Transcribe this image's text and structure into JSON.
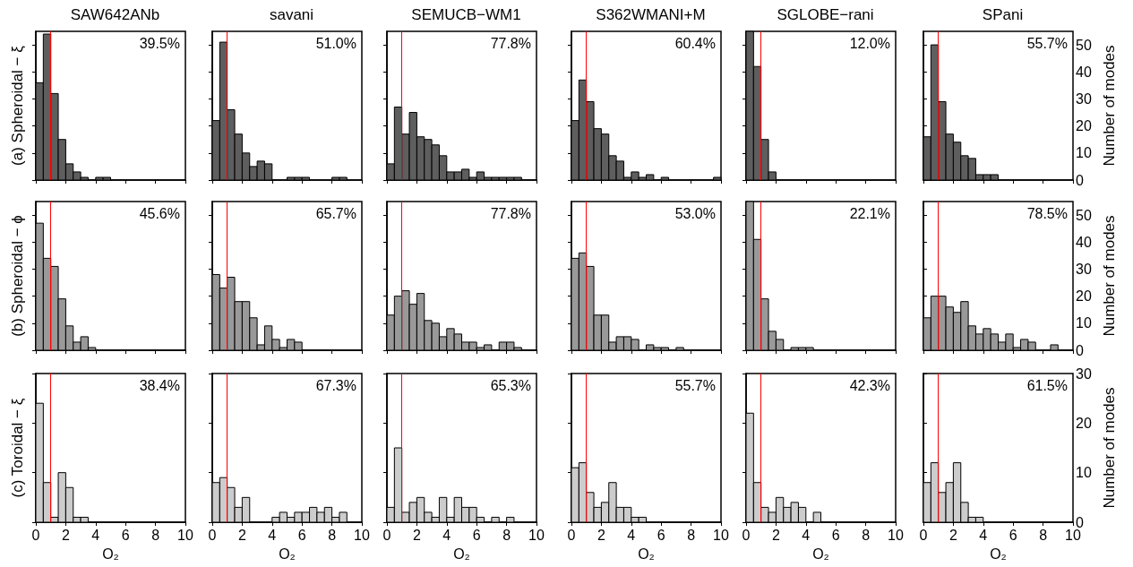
{
  "chart_data": [
    {
      "type": "histogram",
      "title": "SAW642ANb",
      "ylabel": "(a) Spheroidal − ξ",
      "annotations": [
        "39.5%"
      ],
      "color": "#5e5e5e",
      "bins": [
        0,
        0.5,
        1,
        1.5,
        2,
        2.5,
        3,
        3.5,
        4,
        4.5,
        5,
        5.5,
        6,
        6.5,
        7,
        7.5,
        8,
        8.5,
        9,
        9.5,
        10
      ],
      "values": [
        36,
        54,
        32,
        15,
        6,
        3,
        1,
        0,
        1,
        1,
        0,
        0,
        0,
        0,
        0,
        0,
        0,
        0,
        0,
        0
      ],
      "xlim": [
        0,
        10
      ],
      "xticks": [
        0,
        2,
        4,
        6,
        8,
        10
      ],
      "ylim": [
        0,
        55
      ],
      "yticks": [
        0,
        10,
        20,
        30,
        40,
        50
      ],
      "ref_lines": [
        {
          "axis": "x",
          "value": 1,
          "color": "#ff0000"
        }
      ],
      "tick_labels": false
    },
    {
      "type": "histogram",
      "title": "savani",
      "annotations": [
        "51.0%"
      ],
      "color": "#5e5e5e",
      "bins": [
        0,
        0.5,
        1,
        1.5,
        2,
        2.5,
        3,
        3.5,
        4,
        4.5,
        5,
        5.5,
        6,
        6.5,
        7,
        7.5,
        8,
        8.5,
        9,
        9.5,
        10
      ],
      "values": [
        22,
        51,
        26,
        17,
        10,
        5,
        7,
        6,
        0,
        0,
        1,
        1,
        1,
        0,
        0,
        0,
        1,
        1,
        0,
        0
      ],
      "xlim": [
        0,
        10
      ],
      "xticks": [
        0,
        2,
        4,
        6,
        8,
        10
      ],
      "ylim": [
        0,
        55
      ],
      "yticks": [
        0,
        10,
        20,
        30,
        40,
        50
      ],
      "ref_lines": [
        {
          "axis": "x",
          "value": 1,
          "color": "#ff0000"
        }
      ],
      "tick_labels": false
    },
    {
      "type": "histogram",
      "title": "SEMUCB−WM1",
      "annotations": [
        "77.8%"
      ],
      "color": "#5e5e5e",
      "bins": [
        0,
        0.5,
        1,
        1.5,
        2,
        2.5,
        3,
        3.5,
        4,
        4.5,
        5,
        5.5,
        6,
        6.5,
        7,
        7.5,
        8,
        8.5,
        9,
        9.5,
        10
      ],
      "values": [
        6,
        27,
        17,
        25,
        16,
        15,
        13,
        9,
        3,
        3,
        4,
        1,
        3,
        1,
        1,
        1,
        1,
        1,
        0,
        0
      ],
      "xlim": [
        0,
        10
      ],
      "xticks": [
        0,
        2,
        4,
        6,
        8,
        10
      ],
      "ylim": [
        0,
        55
      ],
      "yticks": [
        0,
        10,
        20,
        30,
        40,
        50
      ],
      "ref_lines": [
        {
          "axis": "x",
          "value": 1,
          "color": "#ff0000"
        }
      ],
      "tick_labels": false
    },
    {
      "type": "histogram",
      "title": "S362WMANI+M",
      "annotations": [
        "60.4%"
      ],
      "color": "#5e5e5e",
      "bins": [
        0,
        0.5,
        1,
        1.5,
        2,
        2.5,
        3,
        3.5,
        4,
        4.5,
        5,
        5.5,
        6,
        6.5,
        7,
        7.5,
        8,
        8.5,
        9,
        9.5,
        10
      ],
      "values": [
        22,
        37,
        29,
        19,
        17,
        9,
        7,
        1,
        3,
        1,
        2,
        0,
        1,
        0,
        0,
        0,
        0,
        0,
        0,
        1
      ],
      "xlim": [
        0,
        10
      ],
      "xticks": [
        0,
        2,
        4,
        6,
        8,
        10
      ],
      "ylim": [
        0,
        55
      ],
      "yticks": [
        0,
        10,
        20,
        30,
        40,
        50
      ],
      "ref_lines": [
        {
          "axis": "x",
          "value": 1,
          "color": "#ff0000"
        }
      ],
      "tick_labels": false
    },
    {
      "type": "histogram",
      "title": "SGLOBE−rani",
      "annotations": [
        "12.0%"
      ],
      "color": "#5e5e5e",
      "bins": [
        0,
        0.5,
        1,
        1.5,
        2,
        2.5,
        3,
        3.5,
        4,
        4.5,
        5,
        5.5,
        6,
        6.5,
        7,
        7.5,
        8,
        8.5,
        9,
        9.5,
        10
      ],
      "values": [
        55,
        42,
        15,
        3,
        0,
        0,
        0,
        0,
        0,
        0,
        0,
        0,
        0,
        0,
        0,
        0,
        0,
        0,
        0,
        0
      ],
      "xlim": [
        0,
        10
      ],
      "xticks": [
        0,
        2,
        4,
        6,
        8,
        10
      ],
      "ylim": [
        0,
        55
      ],
      "yticks": [
        0,
        10,
        20,
        30,
        40,
        50
      ],
      "ref_lines": [
        {
          "axis": "x",
          "value": 1,
          "color": "#ff0000"
        }
      ],
      "tick_labels": false
    },
    {
      "type": "histogram",
      "title": "SPani",
      "ylabel": "Number of modes",
      "annotations": [
        "55.7%"
      ],
      "color": "#5e5e5e",
      "bins": [
        0,
        0.5,
        1,
        1.5,
        2,
        2.5,
        3,
        3.5,
        4,
        4.5,
        5,
        5.5,
        6,
        6.5,
        7,
        7.5,
        8,
        8.5,
        9,
        9.5,
        10
      ],
      "values": [
        16,
        50,
        29,
        17,
        14,
        9,
        8,
        2,
        2,
        2,
        0,
        0,
        0,
        0,
        0,
        0,
        0,
        0,
        0,
        0
      ],
      "xlim": [
        0,
        10
      ],
      "xticks": [
        0,
        2,
        4,
        6,
        8,
        10
      ],
      "ylim": [
        0,
        55
      ],
      "yticks": [
        0,
        10,
        20,
        30,
        40,
        50
      ],
      "ref_lines": [
        {
          "axis": "x",
          "value": 1,
          "color": "#ff0000"
        }
      ],
      "tick_labels": "y"
    },
    {
      "type": "histogram",
      "ylabel": "(b) Spheroidal − ϕ",
      "annotations": [
        "45.6%"
      ],
      "color": "#999999",
      "bins": [
        0,
        0.5,
        1,
        1.5,
        2,
        2.5,
        3,
        3.5,
        4,
        4.5,
        5,
        5.5,
        6,
        6.5,
        7,
        7.5,
        8,
        8.5,
        9,
        9.5,
        10
      ],
      "values": [
        47,
        34,
        31,
        19,
        9,
        3,
        5,
        1,
        0,
        0,
        0,
        0,
        0,
        0,
        0,
        0,
        0,
        0,
        0,
        0
      ],
      "xlim": [
        0,
        10
      ],
      "xticks": [
        0,
        2,
        4,
        6,
        8,
        10
      ],
      "ylim": [
        0,
        55
      ],
      "yticks": [
        0,
        10,
        20,
        30,
        40,
        50
      ],
      "ref_lines": [
        {
          "axis": "x",
          "value": 1,
          "color": "#ff0000"
        }
      ],
      "tick_labels": false
    },
    {
      "type": "histogram",
      "annotations": [
        "65.7%"
      ],
      "color": "#999999",
      "bins": [
        0,
        0.5,
        1,
        1.5,
        2,
        2.5,
        3,
        3.5,
        4,
        4.5,
        5,
        5.5,
        6,
        6.5,
        7,
        7.5,
        8,
        8.5,
        9,
        9.5,
        10
      ],
      "values": [
        28,
        23,
        27,
        18,
        18,
        12,
        2,
        9,
        4,
        1,
        4,
        3,
        0,
        0,
        0,
        0,
        0,
        0,
        0,
        0
      ],
      "xlim": [
        0,
        10
      ],
      "xticks": [
        0,
        2,
        4,
        6,
        8,
        10
      ],
      "ylim": [
        0,
        55
      ],
      "yticks": [
        0,
        10,
        20,
        30,
        40,
        50
      ],
      "ref_lines": [
        {
          "axis": "x",
          "value": 1,
          "color": "#ff0000"
        }
      ],
      "tick_labels": false
    },
    {
      "type": "histogram",
      "annotations": [
        "77.8%"
      ],
      "color": "#999999",
      "bins": [
        0,
        0.5,
        1,
        1.5,
        2,
        2.5,
        3,
        3.5,
        4,
        4.5,
        5,
        5.5,
        6,
        6.5,
        7,
        7.5,
        8,
        8.5,
        9,
        9.5,
        10
      ],
      "values": [
        13,
        20,
        22,
        17,
        21,
        11,
        10,
        5,
        8,
        6,
        3,
        3,
        1,
        2,
        0,
        3,
        3,
        1,
        0,
        0
      ],
      "xlim": [
        0,
        10
      ],
      "xticks": [
        0,
        2,
        4,
        6,
        8,
        10
      ],
      "ylim": [
        0,
        55
      ],
      "yticks": [
        0,
        10,
        20,
        30,
        40,
        50
      ],
      "ref_lines": [
        {
          "axis": "x",
          "value": 1,
          "color": "#ff0000"
        }
      ],
      "tick_labels": false
    },
    {
      "type": "histogram",
      "annotations": [
        "53.0%"
      ],
      "color": "#999999",
      "bins": [
        0,
        0.5,
        1,
        1.5,
        2,
        2.5,
        3,
        3.5,
        4,
        4.5,
        5,
        5.5,
        6,
        6.5,
        7,
        7.5,
        8,
        8.5,
        9,
        9.5,
        10
      ],
      "values": [
        34,
        36,
        31,
        13,
        13,
        3,
        5,
        5,
        4,
        0,
        2,
        1,
        1,
        0,
        1,
        0,
        0,
        0,
        0,
        0
      ],
      "xlim": [
        0,
        10
      ],
      "xticks": [
        0,
        2,
        4,
        6,
        8,
        10
      ],
      "ylim": [
        0,
        55
      ],
      "yticks": [
        0,
        10,
        20,
        30,
        40,
        50
      ],
      "ref_lines": [
        {
          "axis": "x",
          "value": 1,
          "color": "#ff0000"
        }
      ],
      "tick_labels": false
    },
    {
      "type": "histogram",
      "annotations": [
        "22.1%"
      ],
      "color": "#999999",
      "bins": [
        0,
        0.5,
        1,
        1.5,
        2,
        2.5,
        3,
        3.5,
        4,
        4.5,
        5,
        5.5,
        6,
        6.5,
        7,
        7.5,
        8,
        8.5,
        9,
        9.5,
        10
      ],
      "values": [
        55,
        41,
        19,
        7,
        4,
        0,
        1,
        1,
        1,
        0,
        0,
        0,
        0,
        0,
        0,
        0,
        0,
        0,
        0,
        0
      ],
      "xlim": [
        0,
        10
      ],
      "xticks": [
        0,
        2,
        4,
        6,
        8,
        10
      ],
      "ylim": [
        0,
        55
      ],
      "yticks": [
        0,
        10,
        20,
        30,
        40,
        50
      ],
      "ref_lines": [
        {
          "axis": "x",
          "value": 1,
          "color": "#ff0000"
        }
      ],
      "tick_labels": false
    },
    {
      "type": "histogram",
      "ylabel": "Number of modes",
      "annotations": [
        "78.5%"
      ],
      "color": "#999999",
      "bins": [
        0,
        0.5,
        1,
        1.5,
        2,
        2.5,
        3,
        3.5,
        4,
        4.5,
        5,
        5.5,
        6,
        6.5,
        7,
        7.5,
        8,
        8.5,
        9,
        9.5,
        10
      ],
      "values": [
        12,
        20,
        20,
        16,
        14,
        18,
        9,
        6,
        8,
        6,
        3,
        6,
        1,
        4,
        3,
        0,
        0,
        2,
        0,
        0
      ],
      "xlim": [
        0,
        10
      ],
      "xticks": [
        0,
        2,
        4,
        6,
        8,
        10
      ],
      "ylim": [
        0,
        55
      ],
      "yticks": [
        0,
        10,
        20,
        30,
        40,
        50
      ],
      "ref_lines": [
        {
          "axis": "x",
          "value": 1,
          "color": "#ff0000"
        }
      ],
      "tick_labels": "y"
    },
    {
      "type": "histogram",
      "ylabel": "(c) Toroidal − ξ",
      "xlabel": "O₂",
      "annotations": [
        "38.4%"
      ],
      "color": "#cccccc",
      "bins": [
        0,
        0.5,
        1,
        1.5,
        2,
        2.5,
        3,
        3.5,
        4,
        4.5,
        5,
        5.5,
        6,
        6.5,
        7,
        7.5,
        8,
        8.5,
        9,
        9.5,
        10
      ],
      "values": [
        24,
        8,
        1,
        10,
        7,
        1,
        1,
        0,
        0,
        0,
        0,
        0,
        0,
        0,
        0,
        0,
        0,
        0,
        0,
        0
      ],
      "xlim": [
        0,
        10
      ],
      "xticks": [
        0,
        2,
        4,
        6,
        8,
        10
      ],
      "ylim": [
        0,
        30
      ],
      "yticks": [
        0,
        10,
        20,
        30
      ],
      "ref_lines": [
        {
          "axis": "x",
          "value": 1,
          "color": "#ff0000"
        }
      ],
      "tick_labels": "x"
    },
    {
      "type": "histogram",
      "xlabel": "O₂",
      "annotations": [
        "67.3%"
      ],
      "color": "#cccccc",
      "bins": [
        0,
        0.5,
        1,
        1.5,
        2,
        2.5,
        3,
        3.5,
        4,
        4.5,
        5,
        5.5,
        6,
        6.5,
        7,
        7.5,
        8,
        8.5,
        9,
        9.5,
        10
      ],
      "values": [
        8,
        9,
        7,
        3,
        5,
        0,
        0,
        0,
        1,
        2,
        1,
        2,
        2,
        3,
        2,
        3,
        1,
        2,
        0,
        0
      ],
      "xlim": [
        0,
        10
      ],
      "xticks": [
        0,
        2,
        4,
        6,
        8,
        10
      ],
      "ylim": [
        0,
        30
      ],
      "yticks": [
        0,
        10,
        20,
        30
      ],
      "ref_lines": [
        {
          "axis": "x",
          "value": 1,
          "color": "#ff0000"
        }
      ],
      "tick_labels": "x"
    },
    {
      "type": "histogram",
      "xlabel": "O₂",
      "annotations": [
        "65.3%"
      ],
      "color": "#cccccc",
      "bins": [
        0,
        0.5,
        1,
        1.5,
        2,
        2.5,
        3,
        3.5,
        4,
        4.5,
        5,
        5.5,
        6,
        6.5,
        7,
        7.5,
        8,
        8.5,
        9,
        9.5,
        10
      ],
      "values": [
        3,
        15,
        2,
        4,
        5,
        2,
        1,
        5,
        1,
        5,
        3,
        3,
        1,
        0,
        1,
        0,
        1,
        0,
        0,
        0
      ],
      "xlim": [
        0,
        10
      ],
      "xticks": [
        0,
        2,
        4,
        6,
        8,
        10
      ],
      "ylim": [
        0,
        30
      ],
      "yticks": [
        0,
        10,
        20,
        30
      ],
      "ref_lines": [
        {
          "axis": "x",
          "value": 1,
          "color": "#ff0000"
        }
      ],
      "tick_labels": "x"
    },
    {
      "type": "histogram",
      "xlabel": "O₂",
      "annotations": [
        "55.7%"
      ],
      "color": "#cccccc",
      "bins": [
        0,
        0.5,
        1,
        1.5,
        2,
        2.5,
        3,
        3.5,
        4,
        4.5,
        5,
        5.5,
        6,
        6.5,
        7,
        7.5,
        8,
        8.5,
        9,
        9.5,
        10
      ],
      "values": [
        11,
        12,
        6,
        3,
        4,
        8,
        3,
        3,
        1,
        1,
        0,
        0,
        0,
        0,
        0,
        0,
        0,
        0,
        0,
        0
      ],
      "xlim": [
        0,
        10
      ],
      "xticks": [
        0,
        2,
        4,
        6,
        8,
        10
      ],
      "ylim": [
        0,
        30
      ],
      "yticks": [
        0,
        10,
        20,
        30
      ],
      "ref_lines": [
        {
          "axis": "x",
          "value": 1,
          "color": "#ff0000"
        }
      ],
      "tick_labels": "x"
    },
    {
      "type": "histogram",
      "xlabel": "O₂",
      "annotations": [
        "42.3%"
      ],
      "color": "#cccccc",
      "bins": [
        0,
        0.5,
        1,
        1.5,
        2,
        2.5,
        3,
        3.5,
        4,
        4.5,
        5,
        5.5,
        6,
        6.5,
        7,
        7.5,
        8,
        8.5,
        9,
        9.5,
        10
      ],
      "values": [
        22,
        8,
        3,
        2,
        5,
        3,
        4,
        3,
        0,
        2,
        0,
        0,
        0,
        0,
        0,
        0,
        0,
        0,
        0,
        0
      ],
      "xlim": [
        0,
        10
      ],
      "xticks": [
        0,
        2,
        4,
        6,
        8,
        10
      ],
      "ylim": [
        0,
        30
      ],
      "yticks": [
        0,
        10,
        20,
        30
      ],
      "ref_lines": [
        {
          "axis": "x",
          "value": 1,
          "color": "#ff0000"
        }
      ],
      "tick_labels": "x"
    },
    {
      "type": "histogram",
      "xlabel": "O₂",
      "ylabel": "Number of modes",
      "annotations": [
        "61.5%"
      ],
      "color": "#cccccc",
      "bins": [
        0,
        0.5,
        1,
        1.5,
        2,
        2.5,
        3,
        3.5,
        4,
        4.5,
        5,
        5.5,
        6,
        6.5,
        7,
        7.5,
        8,
        8.5,
        9,
        9.5,
        10
      ],
      "values": [
        8,
        12,
        6,
        8,
        12,
        4,
        1,
        1,
        0,
        0,
        0,
        0,
        0,
        0,
        0,
        0,
        0,
        0,
        0,
        0
      ],
      "xlim": [
        0,
        10
      ],
      "xticks": [
        0,
        2,
        4,
        6,
        8,
        10
      ],
      "ylim": [
        0,
        30
      ],
      "yticks": [
        0,
        10,
        20,
        30
      ],
      "ref_lines": [
        {
          "axis": "x",
          "value": 1,
          "color": "#ff0000"
        }
      ]
    }
  ]
}
